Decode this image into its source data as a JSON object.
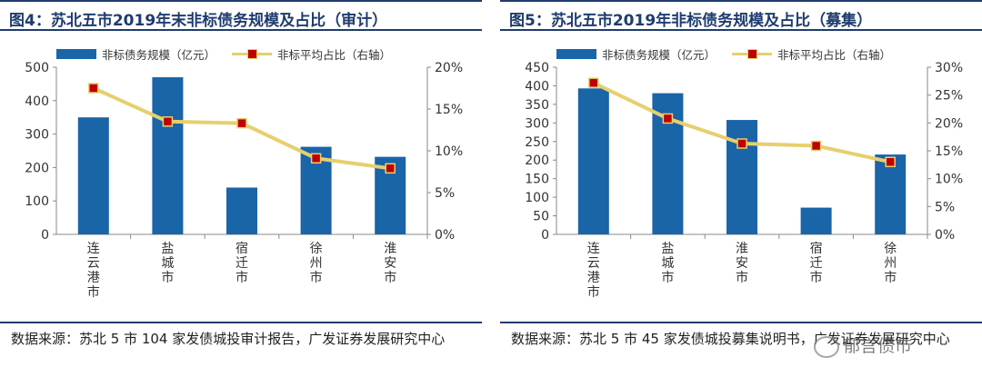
{
  "colors": {
    "bar": "#1a64a8",
    "line": "#e6cf6e",
    "marker": "#c00000",
    "title": "#1f3c6e"
  },
  "chart_data": [
    {
      "type": "bar",
      "title": "图4：苏北五市2019年末非标债务规模及占比（审计）",
      "categories": [
        "连云港市",
        "盐城市",
        "宿迁市",
        "徐州市",
        "淮安市"
      ],
      "series": [
        {
          "name": "非标债务规模（亿元）",
          "kind": "bar",
          "axis": "left",
          "values": [
            350,
            470,
            140,
            262,
            232
          ]
        },
        {
          "name": "非标平均占比（右轴）",
          "kind": "line",
          "axis": "right",
          "values": [
            17.5,
            13.5,
            13.3,
            9.1,
            7.9
          ]
        }
      ],
      "ylim": [
        0,
        500
      ],
      "yticks": [
        "0",
        "100",
        "200",
        "300",
        "400",
        "500"
      ],
      "y2lim": [
        0,
        20
      ],
      "y2ticks": [
        "0%",
        "5%",
        "10%",
        "15%",
        "20%"
      ],
      "source": "数据来源：苏北 5 市 104 家发债城投审计报告，广发证券发展研究中心"
    },
    {
      "type": "bar",
      "title": "图5：苏北五市2019年非标债务规模及占比（募集）",
      "categories": [
        "连云港市",
        "盐城市",
        "淮安市",
        "宿迁市",
        "徐州市"
      ],
      "series": [
        {
          "name": "非标债务规模（亿元）",
          "kind": "bar",
          "axis": "left",
          "values": [
            393,
            380,
            308,
            72,
            215
          ]
        },
        {
          "name": "非标平均占比（右轴）",
          "kind": "line",
          "axis": "right",
          "values": [
            27.2,
            20.8,
            16.3,
            15.9,
            13.0
          ]
        }
      ],
      "ylim": [
        0,
        450
      ],
      "yticks": [
        "0",
        "50",
        "100",
        "150",
        "200",
        "250",
        "300",
        "350",
        "400",
        "450"
      ],
      "y2lim": [
        0,
        30
      ],
      "y2ticks": [
        "0%",
        "5%",
        "10%",
        "15%",
        "20%",
        "25%",
        "30%"
      ],
      "source": "数据来源：苏北 5 市 45 家发债城投募集说明书，广发证券发展研究中心"
    }
  ],
  "watermark": "郁言债市"
}
